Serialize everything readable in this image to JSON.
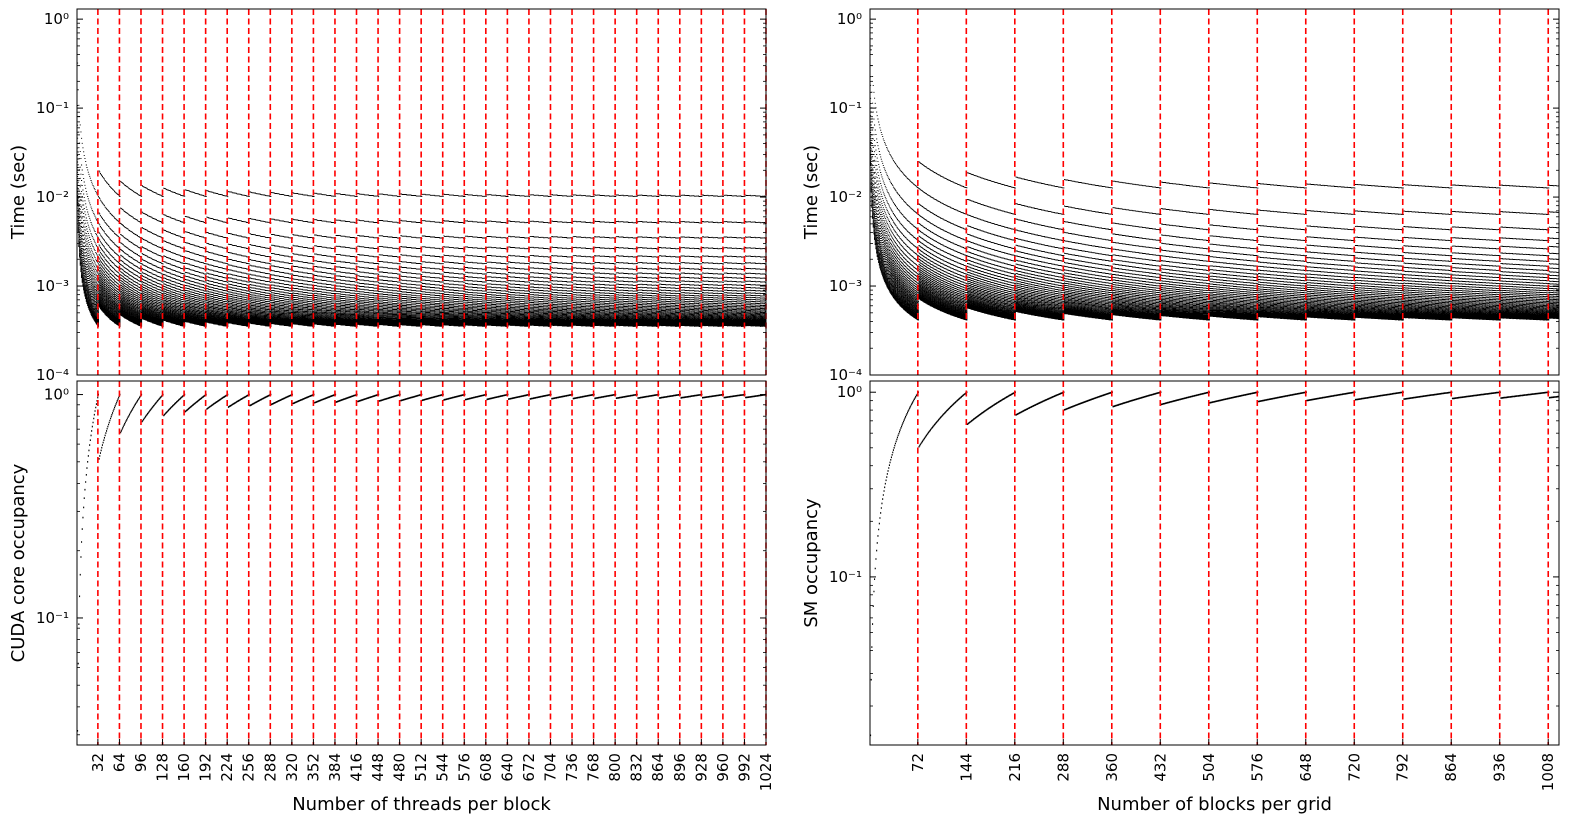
{
  "chart_data": [
    {
      "id": "tl",
      "type": "scatter",
      "ylabel": "Time (sec)",
      "xlabel": "",
      "yscale": "log",
      "ylim": [
        0.0001,
        1.3
      ],
      "xlim": [
        1,
        1024
      ],
      "ytick_values": [
        0.0001,
        0.001,
        0.01,
        0.1,
        1
      ],
      "ytick_labels": [
        "10⁻⁴",
        "10⁻³",
        "10⁻²",
        "10⁻¹",
        "10⁰"
      ],
      "vlines_every": 32,
      "vline_color": "#ff0000",
      "point_color": "#000000",
      "series_description": "time vs threads per block; curves for k=1..40, t = 0.0001 + 0.01*ceil(x/32)*32/(x*k)"
    },
    {
      "id": "bl",
      "type": "scatter",
      "ylabel": "CUDA core occupancy",
      "xlabel": "Number of threads per block",
      "yscale": "log",
      "ylim": [
        0.027,
        1.15
      ],
      "xlim": [
        1,
        1024
      ],
      "ytick_values": [
        0.1,
        1
      ],
      "ytick_labels": [
        "10⁻¹",
        "10⁰"
      ],
      "xtick_values": [
        32,
        64,
        96,
        128,
        160,
        192,
        224,
        256,
        288,
        320,
        352,
        384,
        416,
        448,
        480,
        512,
        544,
        576,
        608,
        640,
        672,
        704,
        736,
        768,
        800,
        832,
        864,
        896,
        928,
        960,
        992,
        1024
      ],
      "xtick_labels": [
        "32",
        "64",
        "96",
        "128",
        "160",
        "192",
        "224",
        "256",
        "288",
        "320",
        "352",
        "384",
        "416",
        "448",
        "480",
        "512",
        "544",
        "576",
        "608",
        "640",
        "672",
        "704",
        "736",
        "768",
        "800",
        "832",
        "864",
        "896",
        "928",
        "960",
        "992",
        "1024"
      ],
      "vlines_every": 32,
      "vline_color": "#ff0000",
      "point_color": "#000000",
      "series_description": "occupancy = x / (ceil(x/32)*32)"
    },
    {
      "id": "tr",
      "type": "scatter",
      "ylabel": "Time (sec)",
      "xlabel": "",
      "yscale": "log",
      "ylim": [
        0.0001,
        1.3
      ],
      "xlim": [
        1,
        1024
      ],
      "ytick_values": [
        0.0001,
        0.001,
        0.01,
        0.1,
        1
      ],
      "ytick_labels": [
        "10⁻⁴",
        "10⁻³",
        "10⁻²",
        "10⁻¹",
        "10⁰"
      ],
      "vlines_every": 72,
      "vline_color": "#ff0000",
      "point_color": "#000000",
      "series_description": "time vs blocks per grid; curves for k=1..40, t = 0.0001 + 0.2*ceil(x/72)*72/(x*k*16)"
    },
    {
      "id": "br",
      "type": "scatter",
      "ylabel": "SM occupancy",
      "xlabel": "Number of blocks per grid",
      "yscale": "log",
      "ylim": [
        0.0123,
        1.15
      ],
      "xlim": [
        1,
        1024
      ],
      "ytick_values": [
        0.1,
        1
      ],
      "ytick_labels": [
        "10⁻¹",
        "10⁰"
      ],
      "xtick_values": [
        72,
        144,
        216,
        288,
        360,
        432,
        504,
        576,
        648,
        720,
        792,
        864,
        936,
        1008
      ],
      "xtick_labels": [
        "72",
        "144",
        "216",
        "288",
        "360",
        "432",
        "504",
        "576",
        "648",
        "720",
        "792",
        "864",
        "936",
        "1008"
      ],
      "vlines_every": 72,
      "vline_color": "#ff0000",
      "point_color": "#000000",
      "series_description": "occupancy = x / (ceil(x/72)*72)"
    }
  ]
}
